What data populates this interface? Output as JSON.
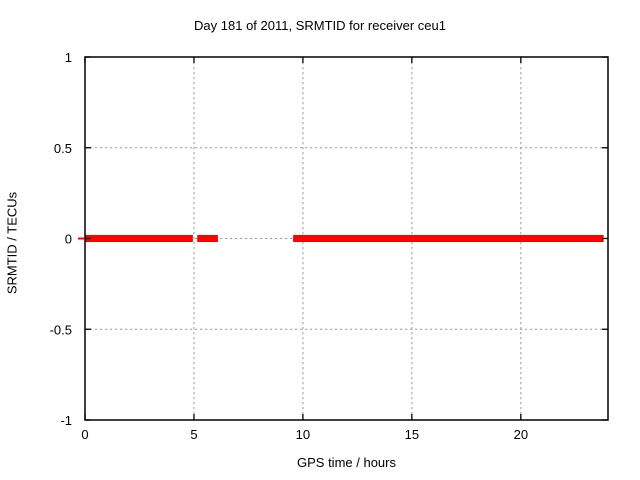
{
  "chart_data": {
    "type": "line",
    "title": "Day 181 of 2011, SRMTID for receiver ceu1",
    "xlabel": "GPS time / hours",
    "ylabel": "SRMTID / TECUs",
    "xlim": [
      0,
      24
    ],
    "ylim": [
      -1,
      1
    ],
    "xticks": [
      0,
      5,
      10,
      15,
      20
    ],
    "yticks": [
      -1,
      -0.5,
      0,
      0.5,
      1
    ],
    "grid": true,
    "grid_style": "dashed",
    "grid_color": "#9a9a9a",
    "frame_color": "#000000",
    "background_color": "#ffffff",
    "legend": "none",
    "series": [
      {
        "name": "SRMTID",
        "color": "#ff0000",
        "line_width": 7,
        "style": "horizontal-segments",
        "segments": [
          {
            "x_start": 0.0,
            "x_end": 4.95,
            "y": 0
          },
          {
            "x_start": 5.15,
            "x_end": 6.1,
            "y": 0
          },
          {
            "x_start": 9.55,
            "x_end": 23.8,
            "y": 0
          }
        ]
      }
    ],
    "annotations": [
      {
        "type": "tick-artifact",
        "desc": "small red dash just outside left axis at y=0",
        "color": "#ff0000",
        "y": 0
      }
    ]
  }
}
